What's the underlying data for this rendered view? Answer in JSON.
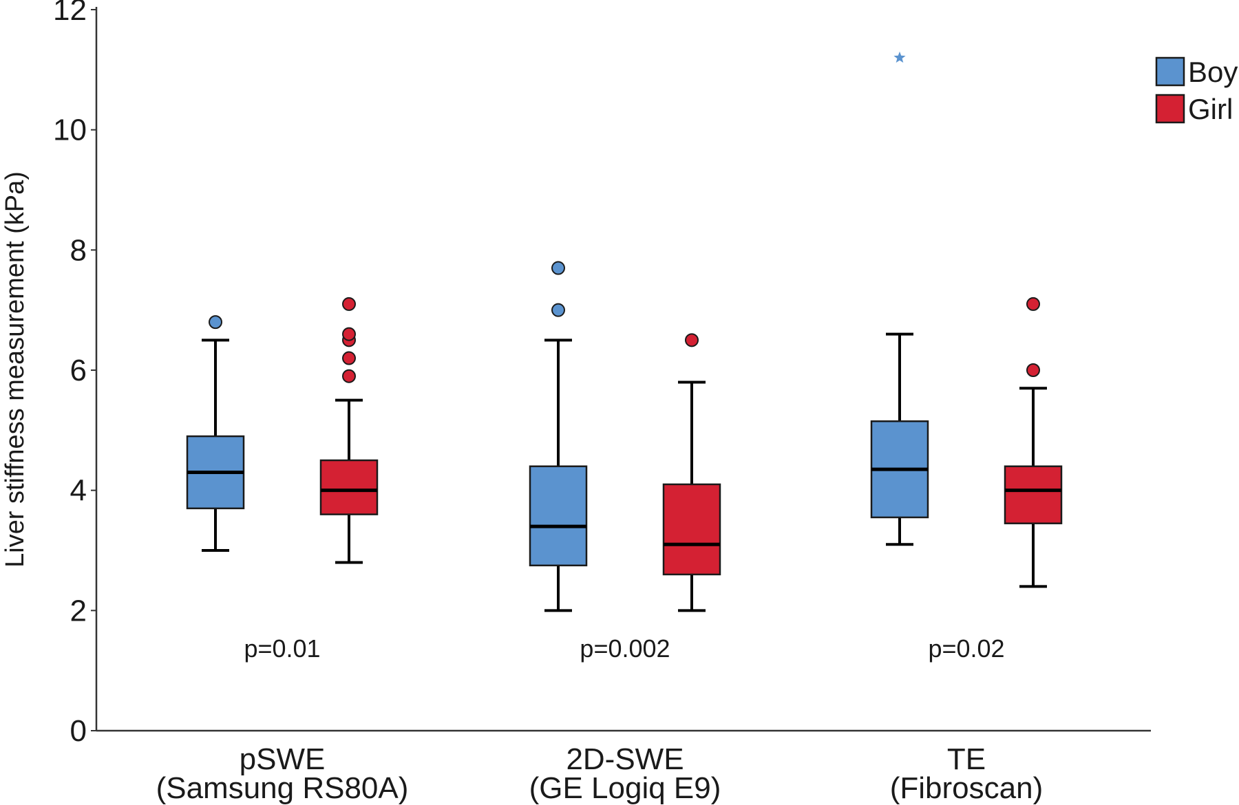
{
  "chart_data": {
    "type": "box",
    "ylabel": "Liver stiffness measurement (kPa)",
    "ylim": [
      0,
      12
    ],
    "yticks": [
      "0",
      "2",
      "4",
      "6",
      "8",
      "10",
      "12"
    ],
    "grid": false,
    "legend_position": "top-right",
    "categories": [
      {
        "line1": "pSWE",
        "line2": "(Samsung RS80A)"
      },
      {
        "line1": "2D-SWE",
        "line2": "(GE Logiq E9)"
      },
      {
        "line1": "TE",
        "line2": "(Fibroscan)"
      }
    ],
    "p_values": [
      "p=0.01",
      "p=0.002",
      "p=0.02"
    ],
    "series": [
      {
        "name": "Boy",
        "color": "#5b93cf",
        "boxes": [
          {
            "whisker_low": 3.0,
            "q1": 3.7,
            "median": 4.3,
            "q3": 4.9,
            "whisker_high": 6.5,
            "outliers": [
              6.8
            ],
            "extremes": []
          },
          {
            "whisker_low": 2.0,
            "q1": 2.75,
            "median": 3.4,
            "q3": 4.4,
            "whisker_high": 6.5,
            "outliers": [
              7.0,
              7.7
            ],
            "extremes": []
          },
          {
            "whisker_low": 3.1,
            "q1": 3.55,
            "median": 4.35,
            "q3": 5.15,
            "whisker_high": 6.6,
            "outliers": [],
            "extremes": [
              11.2
            ]
          }
        ]
      },
      {
        "name": "Girl",
        "color": "#d42133",
        "boxes": [
          {
            "whisker_low": 2.8,
            "q1": 3.6,
            "median": 4.0,
            "q3": 4.5,
            "whisker_high": 5.5,
            "outliers": [
              5.9,
              6.2,
              6.5,
              6.6,
              7.1
            ],
            "extremes": []
          },
          {
            "whisker_low": 2.0,
            "q1": 2.6,
            "median": 3.1,
            "q3": 4.1,
            "whisker_high": 5.8,
            "outliers": [
              6.5
            ],
            "extremes": []
          },
          {
            "whisker_low": 2.4,
            "q1": 3.45,
            "median": 4.0,
            "q3": 4.4,
            "whisker_high": 5.7,
            "outliers": [
              6.0,
              7.1
            ],
            "extremes": []
          }
        ]
      }
    ]
  }
}
